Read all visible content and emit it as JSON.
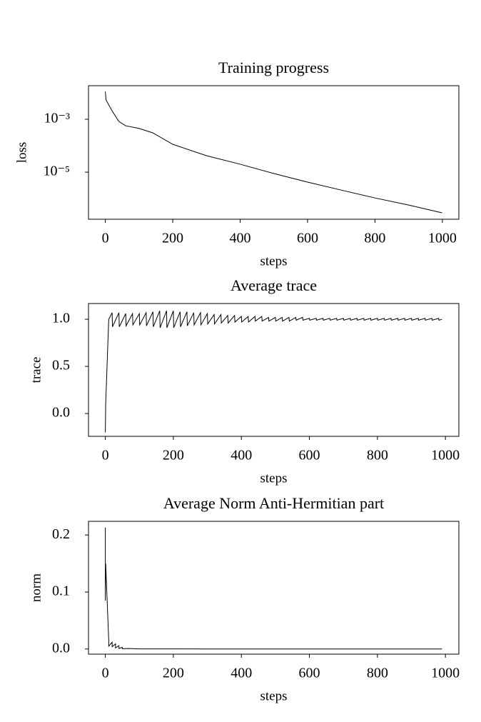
{
  "chart_data": [
    {
      "type": "line",
      "title": "Training progress",
      "xlabel": "steps",
      "ylabel": "loss",
      "yscale": "log",
      "color": "#000000",
      "x": [
        0,
        2,
        20,
        40,
        60,
        100,
        140,
        200,
        300,
        400,
        500,
        600,
        700,
        800,
        900,
        999
      ],
      "values": [
        0.0112,
        0.0054,
        0.0021,
        0.00083,
        0.00057,
        0.00045,
        0.00031,
        0.000113,
        4.2e-05,
        2e-05,
        8.9e-06,
        4.2e-06,
        2.1e-06,
        1.06e-06,
        5.7e-07,
        2.9e-07
      ],
      "xlim": [
        -49.95,
        1048.95
      ],
      "xticks": [
        0,
        200,
        400,
        600,
        800,
        1000
      ],
      "ylim": [
        1.66e-07,
        0.0186
      ],
      "yticks": [
        {
          "value": 0.001,
          "label": "10⁻³"
        },
        {
          "value": 1e-05,
          "label": "10⁻⁵"
        }
      ]
    },
    {
      "type": "line",
      "title": "Average trace",
      "xlabel": "steps",
      "ylabel": "trace",
      "yscale": "linear",
      "color": "#000000",
      "x": [
        0,
        1,
        10,
        20,
        21,
        40,
        41,
        60,
        61,
        80,
        81,
        100,
        101,
        120,
        121,
        140,
        141,
        160,
        161,
        180,
        181,
        200,
        201,
        220,
        221,
        240,
        241,
        260,
        261,
        280,
        281,
        300,
        301,
        320,
        321,
        340,
        341,
        360,
        361,
        380,
        381,
        400,
        401,
        420,
        421,
        440,
        441,
        460,
        461,
        480,
        481,
        500,
        501,
        520,
        521,
        540,
        541,
        560,
        561,
        580,
        581,
        600,
        601,
        620,
        621,
        640,
        641,
        660,
        661,
        680,
        681,
        700,
        701,
        720,
        721,
        740,
        741,
        760,
        761,
        780,
        781,
        800,
        801,
        820,
        821,
        840,
        841,
        860,
        861,
        880,
        881,
        900,
        901,
        920,
        921,
        940,
        941,
        960,
        961,
        980,
        981,
        990
      ],
      "values": [
        -0.2,
        0.1,
        1.0,
        1.07,
        0.92,
        1.07,
        0.92,
        1.06,
        0.93,
        1.06,
        0.94,
        1.06,
        0.94,
        1.07,
        0.93,
        1.08,
        0.92,
        1.09,
        0.91,
        1.09,
        0.91,
        1.09,
        0.91,
        1.08,
        0.92,
        1.08,
        0.93,
        1.07,
        0.94,
        1.07,
        0.94,
        1.06,
        0.95,
        1.05,
        0.95,
        1.05,
        0.96,
        1.04,
        0.96,
        1.04,
        0.97,
        1.03,
        0.97,
        1.03,
        0.97,
        1.03,
        0.98,
        1.03,
        0.98,
        1.02,
        0.98,
        1.02,
        0.98,
        1.02,
        0.98,
        1.02,
        0.98,
        1.02,
        0.99,
        1.02,
        0.99,
        1.01,
        0.99,
        1.01,
        0.99,
        1.01,
        0.99,
        1.01,
        0.99,
        1.01,
        0.99,
        1.01,
        0.99,
        1.01,
        0.99,
        1.01,
        0.99,
        1.01,
        0.99,
        1.01,
        0.99,
        1.01,
        0.99,
        1.01,
        0.99,
        1.01,
        0.99,
        1.01,
        0.99,
        1.01,
        0.99,
        1.01,
        0.99,
        1.01,
        0.99,
        1.01,
        0.99,
        1.01,
        0.99,
        1.01,
        0.99,
        1.0
      ],
      "xlim": [
        -49.5,
        1039.5
      ],
      "xticks": [
        0,
        200,
        400,
        600,
        800,
        1000
      ],
      "ylim": [
        -0.242,
        1.167
      ],
      "yticks": [
        {
          "value": 0,
          "label": "0.0"
        },
        0.5,
        {
          "value": 1,
          "label": "1.0"
        }
      ]
    },
    {
      "type": "line",
      "title": "Average Norm Anti-Hermitian part",
      "xlabel": "steps",
      "ylabel": "norm",
      "yscale": "linear",
      "color": "#000000",
      "x": [
        0,
        0,
        1,
        10,
        10,
        20,
        20,
        30,
        30,
        40,
        40,
        50,
        50,
        70,
        100,
        200,
        300,
        990
      ],
      "values": [
        0.213,
        0.085,
        0.15,
        0.015,
        0.005,
        0.012,
        0.004,
        0.009,
        0.002,
        0.006,
        0.001,
        0.003,
        0.0005,
        0.0008,
        0.0003,
        0.0002,
        0.0001,
        5e-05
      ],
      "xlim": [
        -49.5,
        1039.5
      ],
      "xticks": [
        0,
        200,
        400,
        600,
        800,
        1000
      ],
      "ylim": [
        -0.009,
        0.224
      ],
      "yticks": [
        {
          "value": 0,
          "label": "0.0"
        },
        0.1,
        0.2
      ]
    }
  ]
}
